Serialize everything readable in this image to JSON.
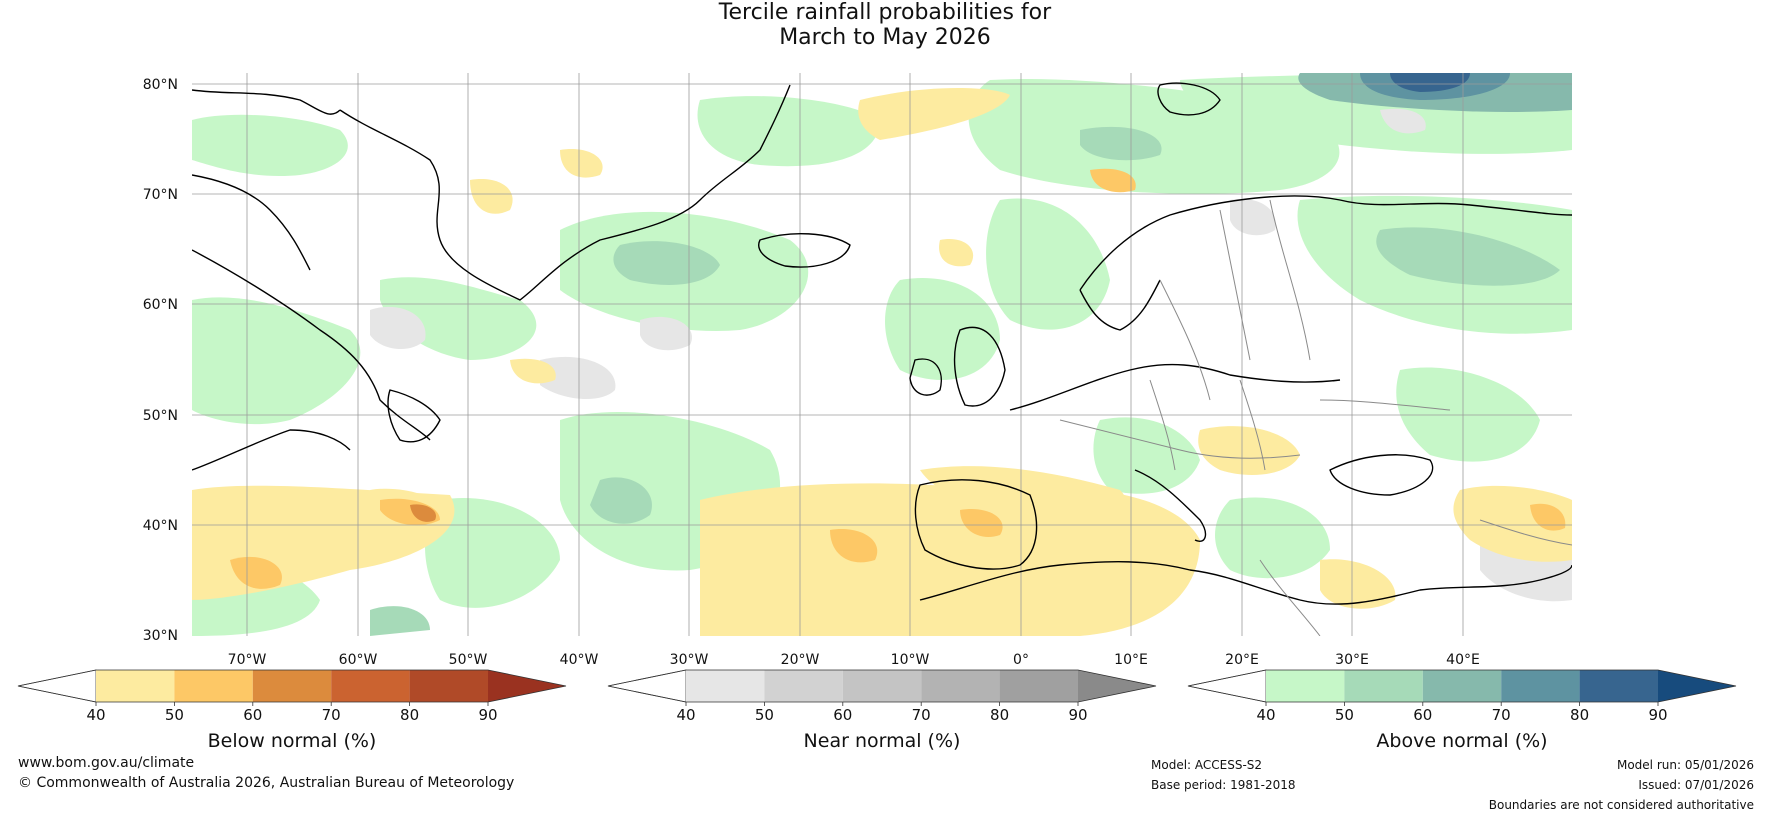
{
  "title": {
    "line1": "Tercile rainfall probabilities for",
    "line2": "March to May 2026"
  },
  "map": {
    "lat_labels": [
      "80°N",
      "70°N",
      "60°N",
      "50°N",
      "40°N",
      "30°N"
    ],
    "lon_labels": [
      "70°W",
      "60°W",
      "50°W",
      "40°W",
      "30°W",
      "20°W",
      "10°W",
      "0°",
      "10°E",
      "20°E",
      "30°E",
      "40°E"
    ],
    "lat_range": [
      30,
      81
    ],
    "lon_range": [
      -75,
      50
    ]
  },
  "colorbars": [
    {
      "title": "Below normal (%)",
      "ticks": [
        "40",
        "50",
        "60",
        "70",
        "80",
        "90"
      ],
      "colors": [
        "#ffffff",
        "#fdeba0",
        "#fdc866",
        "#dc8b3d",
        "#cb6330",
        "#b04a28",
        "#9a3220"
      ]
    },
    {
      "title": "Near normal (%)",
      "ticks": [
        "40",
        "50",
        "60",
        "70",
        "80",
        "90"
      ],
      "colors": [
        "#ffffff",
        "#e6e6e6",
        "#d2d2d2",
        "#c4c4c4",
        "#b3b3b3",
        "#a0a0a0",
        "#8a8a8a"
      ]
    },
    {
      "title": "Above normal (%)",
      "ticks": [
        "40",
        "50",
        "60",
        "70",
        "80",
        "90"
      ],
      "colors": [
        "#ffffff",
        "#c6f7c8",
        "#a6dab8",
        "#86b9ac",
        "#5e93a1",
        "#37658f",
        "#174b7d"
      ]
    }
  ],
  "footer": {
    "website": "www.bom.gov.au/climate",
    "copyright": "© Commonwealth of Australia 2026, Australian Bureau of Meteorology",
    "model": "Model: ACCESS-S2",
    "base_period": "Base period: 1981-2018",
    "model_run": "Model run: 05/01/2026",
    "issued": "Issued: 07/01/2026",
    "disclaimer": "Boundaries are not considered authoritative"
  }
}
